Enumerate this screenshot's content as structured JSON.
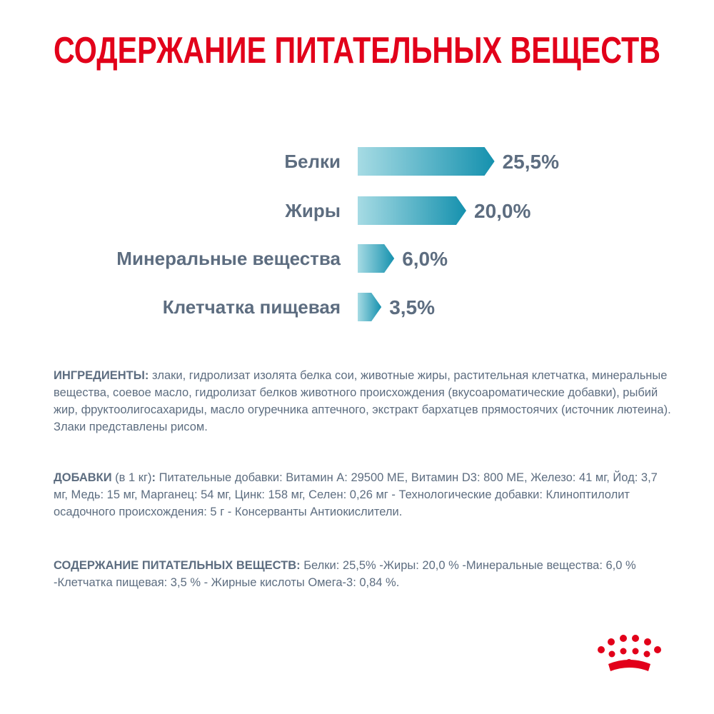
{
  "chart_data": {
    "type": "bar",
    "title": "СОДЕРЖАНИЕ ПИТАТЕЛЬНЫХ ВЕЩЕСТВ",
    "categories": [
      "Белки",
      "Жиры",
      "Минеральные вещества",
      "Клетчатка пищевая"
    ],
    "values": [
      25.5,
      20.0,
      6.0,
      3.5
    ],
    "value_labels": [
      "25,5%",
      "20,0%",
      "6,0%",
      "3,5%"
    ],
    "color": "#1591ae"
  },
  "ingredients": {
    "label": "ИНГРЕДИЕНТЫ:",
    "text": " злаки, гидролизат изолята белка сои, животные жиры, растительная клетчатка, минеральные вещества, соевое масло, гидролизат белков животного происхождения (вкусоароматические добавки), рыбий жир, фруктоолигосахариды, масло огуречника аптечного, экстракт бархатцев прямостоячих (источник лютеина). Злаки представлены рисом."
  },
  "additives": {
    "label": "ДОБАВКИ",
    "qualifier": " (в 1 кг)",
    "colon": ":",
    "text": " Питательные добавки: Витамин А: 29500 МЕ, Витамин D3: 800 МЕ, Железо: 41 мг, Йод: 3,7 мг, Медь: 15 мг, Марганец: 54 мг, Цинк: 158 мг, Селен: 0,26 мг - Технологические добавки: Клиноптилолит осадочного происхождения: 5 г - Консерванты Антиокислители."
  },
  "nutrients": {
    "label": "СОДЕРЖАНИЕ ПИТАТЕЛЬНЫХ ВЕЩЕСТВ:",
    "text": " Белки: 25,5% -Жиры: 20,0 % -Минеральные вещества: 6,0 % -Клетчатка пищевая: 3,5 % - Жирные кислоты Омега-3: 0,84 %."
  }
}
